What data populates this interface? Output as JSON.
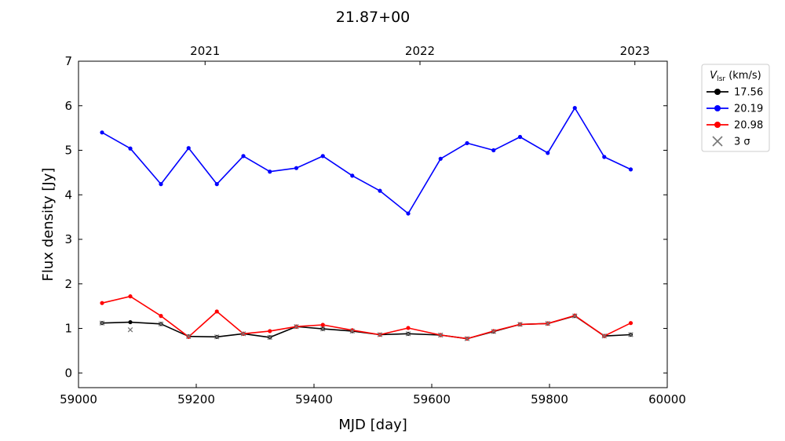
{
  "chart_data": {
    "type": "line",
    "title": "21.87+00",
    "xlabel": "MJD [day]",
    "ylabel": "Flux density [Jy]",
    "xlim": [
      59000,
      60000
    ],
    "ylim": [
      -0.33,
      7
    ],
    "xticks": [
      "59000",
      "59200",
      "59400",
      "59600",
      "59800",
      "60000"
    ],
    "yticks": [
      "0",
      "1",
      "2",
      "3",
      "4",
      "5",
      "6",
      "7"
    ],
    "top_axis": {
      "ticks": [
        {
          "label": "2021",
          "mjd": 59215
        },
        {
          "label": "2022",
          "mjd": 59580
        },
        {
          "label": "2023",
          "mjd": 59945
        }
      ]
    },
    "grid": false,
    "legend": {
      "title_main": "V",
      "title_sub": "lsr",
      "title_unit": " (km/s)",
      "placement": "outside-right",
      "sigma_label": "3 σ"
    },
    "series": [
      {
        "name": "17.56",
        "color": "#000000",
        "x": [
          59040,
          59088,
          59140,
          59187,
          59235,
          59280,
          59325,
          59370,
          59415,
          59465,
          59512,
          59560,
          59615,
          59660,
          59705,
          59750,
          59797,
          59843,
          59893,
          59938
        ],
        "y": [
          1.12,
          1.14,
          1.1,
          0.82,
          0.81,
          0.88,
          0.8,
          1.04,
          0.99,
          0.94,
          0.86,
          0.88,
          0.85,
          0.77,
          0.93,
          1.09,
          1.11,
          1.28,
          0.83,
          0.86
        ]
      },
      {
        "name": "20.19",
        "color": "#0000ff",
        "x": [
          59040,
          59088,
          59140,
          59187,
          59235,
          59280,
          59325,
          59370,
          59415,
          59465,
          59512,
          59560,
          59615,
          59660,
          59705,
          59750,
          59797,
          59843,
          59893,
          59938
        ],
        "y": [
          5.4,
          5.04,
          4.24,
          5.05,
          4.24,
          4.87,
          4.52,
          4.6,
          4.87,
          4.43,
          4.09,
          3.58,
          4.81,
          5.16,
          5.0,
          5.3,
          4.94,
          5.95,
          4.85,
          4.57
        ]
      },
      {
        "name": "20.98",
        "color": "#ff0000",
        "x": [
          59040,
          59088,
          59140,
          59187,
          59235,
          59280,
          59325,
          59370,
          59415,
          59465,
          59512,
          59560,
          59615,
          59660,
          59705,
          59750,
          59797,
          59843,
          59893,
          59938
        ],
        "y": [
          1.57,
          1.72,
          1.28,
          0.81,
          1.38,
          0.88,
          0.94,
          1.04,
          1.08,
          0.96,
          0.86,
          1.01,
          0.85,
          0.77,
          0.94,
          1.09,
          1.11,
          1.29,
          0.83,
          1.12
        ]
      }
    ],
    "sigma_points": [
      {
        "x": 59040,
        "y": 1.12
      },
      {
        "x": 59088,
        "y": 0.97
      },
      {
        "x": 59140,
        "y": 1.1
      },
      {
        "x": 59187,
        "y": 0.82
      },
      {
        "x": 59235,
        "y": 0.81
      },
      {
        "x": 59280,
        "y": 0.88
      },
      {
        "x": 59325,
        "y": 0.8
      },
      {
        "x": 59370,
        "y": 1.04
      },
      {
        "x": 59415,
        "y": 0.99
      },
      {
        "x": 59465,
        "y": 0.94
      },
      {
        "x": 59512,
        "y": 0.86
      },
      {
        "x": 59560,
        "y": 0.88
      },
      {
        "x": 59615,
        "y": 0.85
      },
      {
        "x": 59660,
        "y": 0.77
      },
      {
        "x": 59705,
        "y": 0.93
      },
      {
        "x": 59750,
        "y": 1.09
      },
      {
        "x": 59797,
        "y": 1.11
      },
      {
        "x": 59843,
        "y": 1.28
      },
      {
        "x": 59893,
        "y": 0.83
      },
      {
        "x": 59938,
        "y": 0.86
      }
    ]
  }
}
